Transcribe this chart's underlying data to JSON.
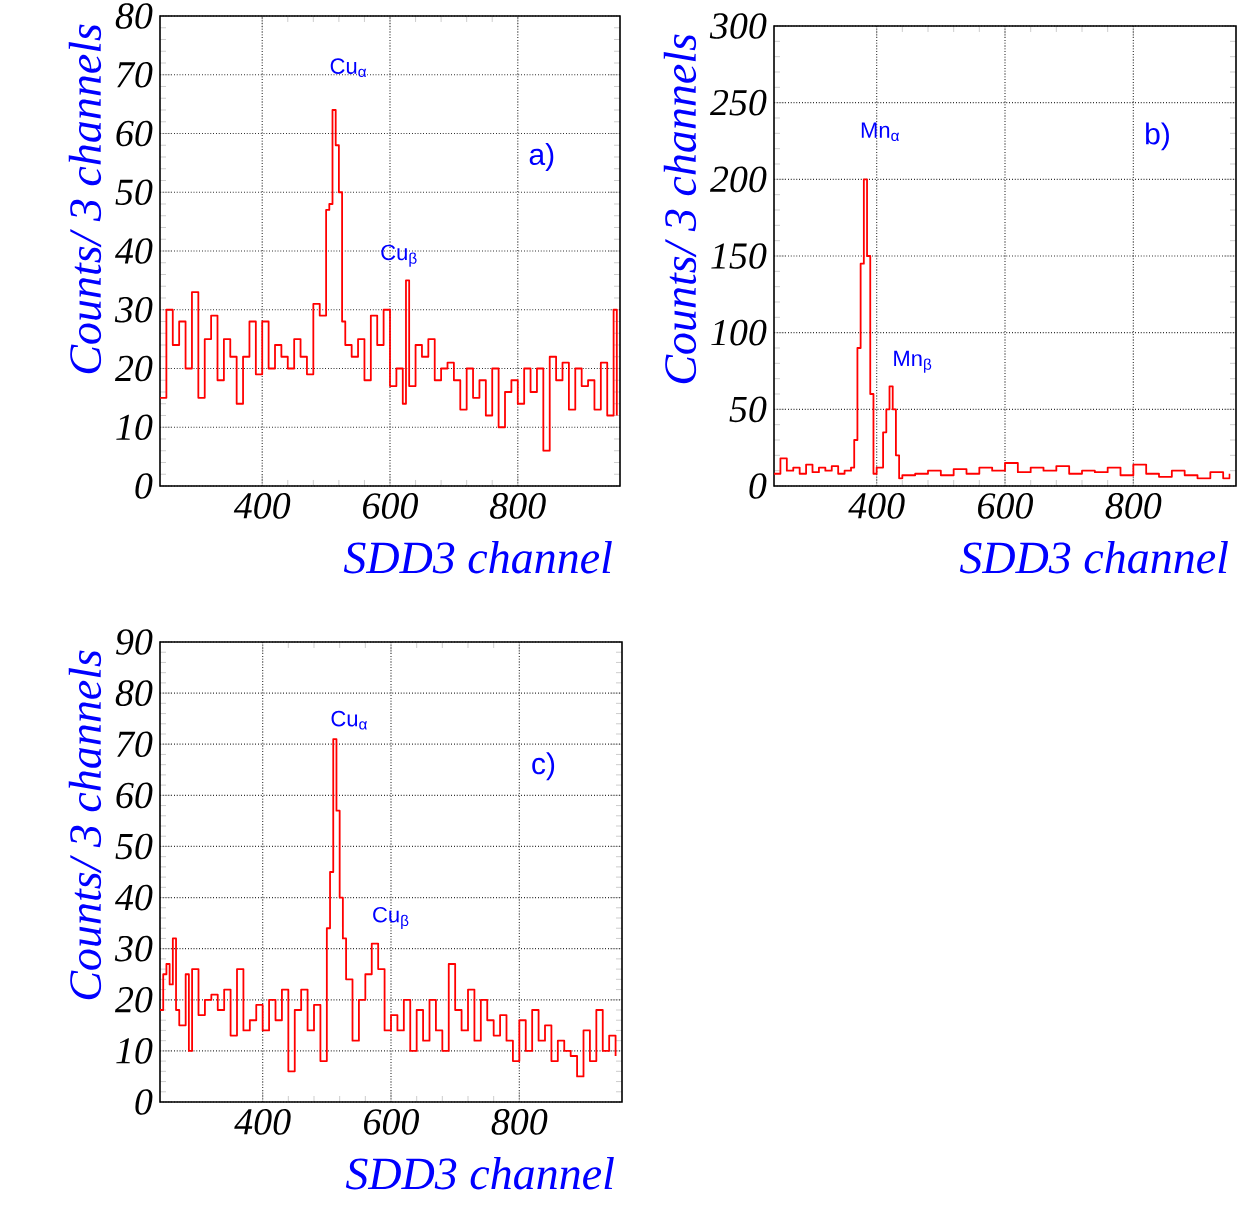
{
  "chart_data": [
    {
      "type": "step",
      "xlabel": "SDD3 channel",
      "ylabel": "Counts/ 3 channels",
      "color": "#ff0000",
      "grid": true,
      "xlim": [
        240,
        960
      ],
      "ylim": [
        0,
        80
      ],
      "xticks": [
        400,
        600,
        800
      ],
      "yticks": [
        0,
        10,
        20,
        30,
        40,
        50,
        60,
        70,
        80
      ],
      "x": [
        240,
        250,
        260,
        270,
        280,
        290,
        300,
        310,
        320,
        330,
        340,
        350,
        360,
        370,
        380,
        390,
        400,
        410,
        420,
        430,
        440,
        450,
        460,
        470,
        480,
        490,
        500,
        505,
        510,
        515,
        520,
        525,
        530,
        540,
        550,
        560,
        570,
        580,
        590,
        600,
        610,
        620,
        625,
        630,
        640,
        650,
        660,
        670,
        680,
        690,
        700,
        710,
        720,
        730,
        740,
        750,
        760,
        770,
        780,
        790,
        800,
        810,
        820,
        830,
        840,
        850,
        860,
        870,
        880,
        890,
        900,
        910,
        920,
        930,
        940,
        950,
        955
      ],
      "values": [
        15,
        30,
        24,
        28,
        20,
        33,
        15,
        25,
        29,
        18,
        25,
        22,
        14,
        22,
        28,
        19,
        28,
        20,
        24,
        22,
        20,
        25,
        22,
        19,
        31,
        29,
        47,
        48,
        64,
        58,
        50,
        28,
        24,
        22,
        25,
        18,
        29,
        24,
        30,
        17,
        20,
        14,
        35,
        17,
        24,
        22,
        25,
        18,
        20,
        21,
        18,
        13,
        20,
        15,
        18,
        12,
        20,
        10,
        16,
        18,
        14,
        20,
        16,
        20,
        6,
        22,
        18,
        21,
        13,
        20,
        17,
        18,
        13,
        21,
        12,
        30,
        12
      ],
      "annotations": [
        "Cu$_{α}$",
        "Cu$_{β}$",
        "a)"
      ]
    },
    {
      "type": "step",
      "xlabel": "SDD3 channel",
      "ylabel": "Counts/ 3 channels",
      "color": "#ff0000",
      "grid": true,
      "xlim": [
        240,
        960
      ],
      "ylim": [
        0,
        300
      ],
      "xticks": [
        400,
        600,
        800
      ],
      "yticks": [
        0,
        50,
        100,
        150,
        200,
        250,
        300
      ],
      "x": [
        240,
        250,
        260,
        270,
        280,
        290,
        300,
        310,
        320,
        330,
        340,
        350,
        360,
        365,
        370,
        375,
        380,
        385,
        390,
        395,
        400,
        410,
        415,
        420,
        425,
        430,
        435,
        440,
        460,
        480,
        500,
        520,
        540,
        560,
        580,
        600,
        620,
        640,
        660,
        680,
        700,
        720,
        740,
        760,
        780,
        800,
        820,
        840,
        860,
        880,
        900,
        920,
        940,
        950
      ],
      "values": [
        8,
        18,
        10,
        12,
        8,
        14,
        9,
        12,
        10,
        13,
        8,
        10,
        12,
        30,
        90,
        145,
        200,
        150,
        60,
        8,
        12,
        35,
        50,
        65,
        50,
        20,
        5,
        7,
        8,
        10,
        7,
        11,
        8,
        12,
        10,
        15,
        9,
        12,
        10,
        13,
        8,
        10,
        9,
        12,
        7,
        14,
        8,
        6,
        10,
        7,
        5,
        9,
        5,
        8
      ],
      "annotations": [
        "Mn$_{α}$",
        "Mn$_{β}$",
        "b)"
      ]
    },
    {
      "type": "step",
      "xlabel": "SDD3 channel",
      "ylabel": "Counts/ 3 channels",
      "color": "#ff0000",
      "grid": true,
      "xlim": [
        240,
        960
      ],
      "ylim": [
        0,
        90
      ],
      "xticks": [
        400,
        600,
        800
      ],
      "yticks": [
        0,
        10,
        20,
        30,
        40,
        50,
        60,
        70,
        80,
        90
      ],
      "x": [
        240,
        245,
        250,
        255,
        260,
        265,
        270,
        280,
        285,
        290,
        300,
        310,
        320,
        330,
        340,
        350,
        360,
        370,
        380,
        390,
        400,
        410,
        420,
        430,
        440,
        450,
        460,
        470,
        480,
        490,
        500,
        505,
        510,
        515,
        520,
        525,
        530,
        540,
        550,
        560,
        570,
        580,
        590,
        600,
        610,
        620,
        630,
        640,
        650,
        660,
        670,
        680,
        690,
        700,
        710,
        720,
        730,
        740,
        750,
        760,
        770,
        780,
        790,
        800,
        810,
        820,
        830,
        840,
        850,
        860,
        870,
        880,
        890,
        900,
        910,
        920,
        930,
        940,
        950
      ],
      "values": [
        18,
        25,
        27,
        23,
        32,
        18,
        15,
        25,
        10,
        26,
        17,
        20,
        21,
        18,
        22,
        13,
        26,
        14,
        16,
        19,
        14,
        20,
        16,
        22,
        6,
        18,
        22,
        14,
        19,
        8,
        34,
        45,
        71,
        57,
        40,
        32,
        24,
        12,
        20,
        25,
        31,
        26,
        14,
        17,
        14,
        20,
        10,
        18,
        12,
        20,
        14,
        10,
        27,
        18,
        14,
        22,
        12,
        20,
        16,
        13,
        17,
        12,
        8,
        16,
        10,
        18,
        12,
        15,
        8,
        12,
        10,
        9,
        5,
        14,
        8,
        18,
        10,
        13,
        9
      ],
      "annotations": [
        "Cu$_{α}$",
        "Cu$_{β}$",
        "c)"
      ]
    }
  ]
}
